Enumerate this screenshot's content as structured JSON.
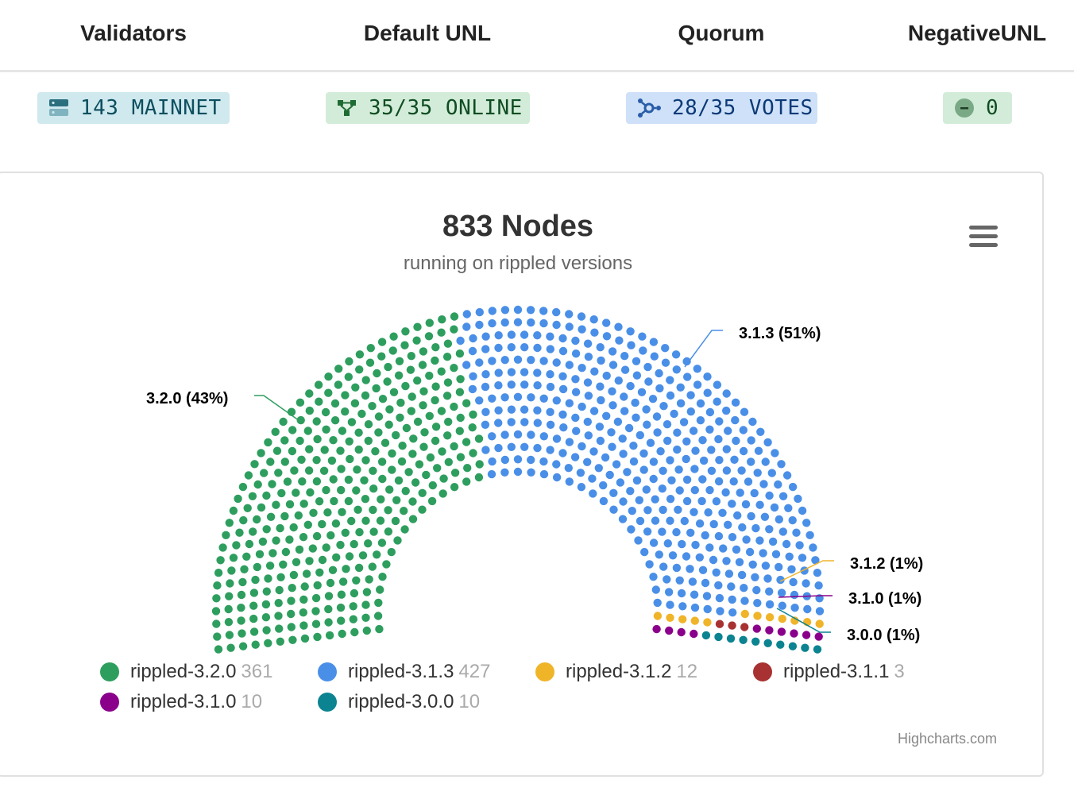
{
  "stats": {
    "validators": {
      "heading": "Validators",
      "value": "143 MAINNET"
    },
    "default_unl": {
      "heading": "Default UNL",
      "value": "35/35 ONLINE"
    },
    "quorum": {
      "heading": "Quorum",
      "value": "28/35 VOTES"
    },
    "negative_unl": {
      "heading": "NegativeUNL",
      "value": "0"
    }
  },
  "icons": {
    "validators": "server-icon",
    "default_unl": "network-icon",
    "quorum": "hub-icon",
    "negative_unl": "minus-circle-icon",
    "menu": "hamburger-menu-icon"
  },
  "colors": {
    "rippled-3.2.0": "#2e9e5e",
    "rippled-3.1.3": "#4a8fe7",
    "rippled-3.1.2": "#f0b429",
    "rippled-3.1.1": "#a83232",
    "rippled-3.1.0": "#8b008b",
    "rippled-3.0.0": "#0b8391"
  },
  "chart_data": {
    "type": "parliament",
    "title": "833 Nodes",
    "subtitle": "running on rippled versions",
    "series": [
      {
        "name": "rippled-3.2.0",
        "value": 361,
        "data_label": "3.2.0 (43%)"
      },
      {
        "name": "rippled-3.1.3",
        "value": 427,
        "data_label": "3.1.3 (51%)"
      },
      {
        "name": "rippled-3.1.2",
        "value": 12,
        "data_label": "3.1.2 (1%)"
      },
      {
        "name": "rippled-3.1.1",
        "value": 3,
        "data_label": ""
      },
      {
        "name": "rippled-3.1.0",
        "value": 10,
        "data_label": "3.1.0 (1%)"
      },
      {
        "name": "rippled-3.0.0",
        "value": 10,
        "data_label": "3.0.0 (1%)"
      }
    ],
    "legend": "bottom",
    "credits": "Highcharts.com"
  }
}
